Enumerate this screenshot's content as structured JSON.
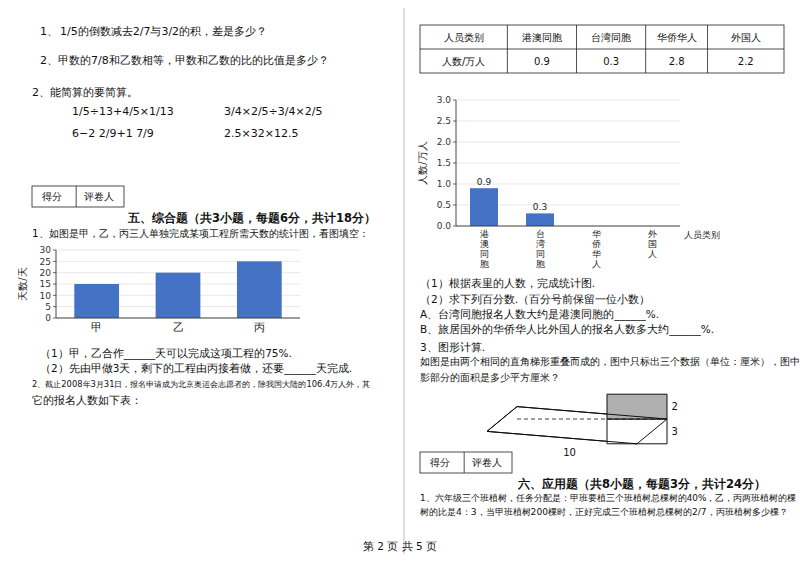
{
  "chart_data": [
    {
      "type": "bar",
      "categories": [
        "甲",
        "乙",
        "丙"
      ],
      "values": [
        15,
        20,
        25
      ],
      "color": "#4472C4",
      "ylim": [
        0,
        30
      ],
      "yticks": [
        0,
        5,
        10,
        15,
        20,
        25,
        30
      ],
      "ylabel": "天数/天",
      "grid": true
    },
    {
      "type": "bar",
      "categories": [
        "港澳同胞",
        "台湾同胞",
        "华侨华人",
        "外国人"
      ],
      "values": [
        0.9,
        0.3,
        0,
        0
      ],
      "value_labels": [
        "0.9",
        "0.3",
        null,
        null
      ],
      "data_labels": true,
      "color": "#4472C4",
      "ylim": [
        0,
        3
      ],
      "yticks": [
        {
          "value": 0,
          "label": "0.0"
        },
        0.5,
        {
          "value": 1,
          "label": "1.0"
        },
        1.5,
        {
          "value": 2,
          "label": "2.0"
        },
        2.5,
        {
          "value": 3,
          "label": "3.0"
        }
      ],
      "xlabel": "人员类别",
      "ylabel": "人数/万人",
      "grid": true
    }
  ],
  "page": {
    "background": "#ffffff",
    "texts": [
      "1、",
      "1/5的倒数减去2/7与3/2的积，差是多少？",
      "2、甲数的7/8和乙数相等，甲数和乙数的比的比值是多少？",
      "2、能简算的要简算。",
      "1/5÷13+4/5×1/13",
      "3/4×2/5÷3/4×2/5",
      "6−2 2/9+1 7/9",
      "2.5×32×12.5",
      "五、综合题（共3小题，每题6分，共计18分）",
      "1、如图是甲，乙，丙三人单独完成某项工程所需天数的统计图，看图填空：",
      "（1）甲，乙合作______天可以完成这项工程的75%.",
      "（2）先由甲做3天，剩下的工程由丙接着做，还要______天完成.",
      "2、截止2008年3月31日，报名申请成为北京奥运会志愿者的，除我国大陆的106.4万人外，其",
      "它的报名人数如下表：",
      "（1）根据表里的人数，完成统计图.",
      "（2）求下列百分数.（百分号前保留一位小数）",
      "A、台湾同胞报名人数大约是港澳同胞的______%.",
      "B、旅居国外的华侨华人比外国人的报名人数多大约______%.",
      "3、图形计算.",
      "如图是由两个相同的直角梯形重叠而成的，图中只标出三个数据（单位：厘米），图中阴",
      "影部分的面积是多少平方厘米？",
      "六、应用题（共8小题，每题3分，共计24分）",
      "1、六年级三个班植树，任务分配是：甲班要植三个班植树总棵树的40%，乙，丙两班植树的棵",
      "树的比是4：3，当甲班植树200棵时，正好完成三个班植树总棵树的2/7，丙班植树多少棵？"
    ],
    "score_box": [
      "得分",
      "评卷人"
    ],
    "table": {
      "headers": [
        "人员类别",
        "港澳同胞",
        "台湾同胞",
        "华侨华人",
        "外国人"
      ],
      "row": [
        "人数/万人",
        "0.9",
        "0.3",
        "2.8",
        "2.2"
      ]
    },
    "figure_labels": [
      "10",
      "3",
      "2"
    ],
    "footer": "第 2 页 共 5 页"
  }
}
